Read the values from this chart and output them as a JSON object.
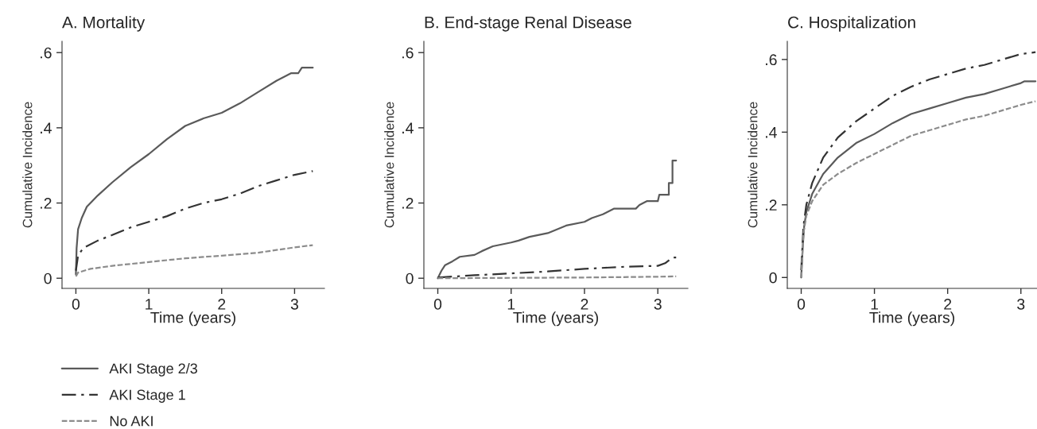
{
  "chart_data": [
    {
      "type": "line",
      "title": "A. Mortality",
      "xlabel": "Time (years)",
      "ylabel": "Cumulative Incidence",
      "xlim": [
        -0.19,
        3.41
      ],
      "ylim": [
        -0.027,
        0.63
      ],
      "xticks": [
        0,
        1,
        2,
        3
      ],
      "yticks": [
        0,
        {
          "value": 0.2,
          "label": ".2"
        },
        {
          "value": 0.4,
          "label": ".4"
        },
        {
          "value": 0.6,
          "label": ".6"
        }
      ],
      "grid": false,
      "legend": "bottom",
      "series": [
        {
          "name": "AKI Stage 2/3",
          "color": "#5a5a5a",
          "line_style": "solid",
          "x": [
            0,
            0.01,
            0.03,
            0.08,
            0.15,
            0.3,
            0.5,
            0.75,
            1,
            1.25,
            1.5,
            1.75,
            2,
            2.25,
            2.5,
            2.75,
            2.95,
            3.05,
            3.1,
            3.25
          ],
          "values": [
            0.01,
            0.08,
            0.13,
            0.16,
            0.19,
            0.22,
            0.255,
            0.295,
            0.33,
            0.37,
            0.405,
            0.425,
            0.44,
            0.465,
            0.495,
            0.525,
            0.545,
            0.545,
            0.56,
            0.56
          ]
        },
        {
          "name": "AKI Stage 1",
          "color": "#333333",
          "line_style": "dashdot",
          "x": [
            0,
            0.03,
            0.1,
            0.3,
            0.5,
            0.75,
            1,
            1.25,
            1.5,
            1.75,
            2,
            2.25,
            2.5,
            2.75,
            3,
            3.25
          ],
          "values": [
            0.02,
            0.06,
            0.08,
            0.1,
            0.115,
            0.135,
            0.15,
            0.165,
            0.185,
            0.2,
            0.21,
            0.225,
            0.245,
            0.26,
            0.275,
            0.285
          ]
        },
        {
          "name": "No AKI",
          "color": "#8c8c8c",
          "line_style": "dashed",
          "x": [
            0,
            0.03,
            0.2,
            0.5,
            1,
            1.5,
            2,
            2.5,
            3,
            3.25
          ],
          "values": [
            0.005,
            0.015,
            0.025,
            0.033,
            0.043,
            0.053,
            0.06,
            0.068,
            0.082,
            0.088
          ]
        }
      ]
    },
    {
      "type": "line",
      "title": "B. End-stage Renal Disease",
      "xlabel": "Time (years)",
      "ylabel": "Cumulative Incidence",
      "xlim": [
        -0.19,
        3.41
      ],
      "ylim": [
        -0.027,
        0.63
      ],
      "xticks": [
        0,
        1,
        2,
        3
      ],
      "yticks": [
        0,
        {
          "value": 0.2,
          "label": ".2"
        },
        {
          "value": 0.4,
          "label": ".4"
        },
        {
          "value": 0.6,
          "label": ".6"
        }
      ],
      "grid": false,
      "series": [
        {
          "color": "#5a5a5a",
          "line_style": "solid",
          "x": [
            0,
            0.05,
            0.1,
            0.2,
            0.3,
            0.5,
            0.6,
            0.75,
            1,
            1.1,
            1.25,
            1.5,
            1.75,
            2,
            2.1,
            2.25,
            2.4,
            2.7,
            2.75,
            2.85,
            3,
            3.02,
            3.15,
            3.15,
            3.2,
            3.2,
            3.25
          ],
          "values": [
            0,
            0.02,
            0.035,
            0.045,
            0.057,
            0.062,
            0.072,
            0.085,
            0.095,
            0.1,
            0.11,
            0.12,
            0.14,
            0.15,
            0.16,
            0.17,
            0.185,
            0.185,
            0.195,
            0.205,
            0.205,
            0.222,
            0.222,
            0.253,
            0.253,
            0.313,
            0.313
          ]
        },
        {
          "color": "#333333",
          "line_style": "dashdot",
          "x": [
            0,
            0.5,
            1,
            1.5,
            2,
            2.5,
            3,
            3.1,
            3.2,
            3.25
          ],
          "values": [
            0.002,
            0.008,
            0.013,
            0.018,
            0.025,
            0.03,
            0.033,
            0.04,
            0.055,
            0.055
          ]
        },
        {
          "color": "#8c8c8c",
          "line_style": "dashed",
          "x": [
            0,
            1,
            2,
            3,
            3.25
          ],
          "values": [
            0,
            0.001,
            0.002,
            0.004,
            0.005
          ]
        }
      ]
    },
    {
      "type": "line",
      "title": "C. Hospitalization",
      "xlabel": "Time (years)",
      "ylabel": "Cumulative Incidence",
      "xlim": [
        -0.19,
        3.22
      ],
      "ylim": [
        -0.03,
        0.65
      ],
      "xticks": [
        0,
        1,
        2,
        3
      ],
      "yticks": [
        0,
        {
          "value": 0.2,
          "label": ".2"
        },
        {
          "value": 0.4,
          "label": ".4"
        },
        {
          "value": 0.6,
          "label": ".6"
        }
      ],
      "grid": false,
      "series": [
        {
          "color": "#5a5a5a",
          "line_style": "solid",
          "x": [
            0,
            0.02,
            0.04,
            0.07,
            0.15,
            0.3,
            0.5,
            0.75,
            1,
            1.25,
            1.5,
            1.75,
            2,
            2.25,
            2.5,
            2.75,
            3,
            3.05,
            3.2
          ],
          "values": [
            0,
            0.08,
            0.14,
            0.18,
            0.23,
            0.285,
            0.33,
            0.37,
            0.395,
            0.425,
            0.45,
            0.465,
            0.48,
            0.495,
            0.505,
            0.52,
            0.535,
            0.54,
            0.54
          ]
        },
        {
          "color": "#333333",
          "line_style": "dashdot",
          "x": [
            0,
            0.03,
            0.07,
            0.15,
            0.3,
            0.5,
            0.75,
            1,
            1.25,
            1.5,
            1.75,
            2,
            2.25,
            2.5,
            2.75,
            3,
            3.2
          ],
          "values": [
            0.02,
            0.14,
            0.2,
            0.26,
            0.33,
            0.385,
            0.43,
            0.465,
            0.5,
            0.525,
            0.545,
            0.56,
            0.575,
            0.585,
            0.6,
            0.615,
            0.62
          ]
        },
        {
          "color": "#8c8c8c",
          "line_style": "dashed",
          "x": [
            0,
            0.03,
            0.07,
            0.15,
            0.3,
            0.5,
            0.75,
            1,
            1.25,
            1.5,
            1.75,
            2,
            2.25,
            2.5,
            2.75,
            3,
            3.2
          ],
          "values": [
            0,
            0.12,
            0.17,
            0.21,
            0.255,
            0.285,
            0.315,
            0.34,
            0.365,
            0.39,
            0.405,
            0.42,
            0.435,
            0.445,
            0.46,
            0.475,
            0.485
          ]
        }
      ]
    }
  ]
}
